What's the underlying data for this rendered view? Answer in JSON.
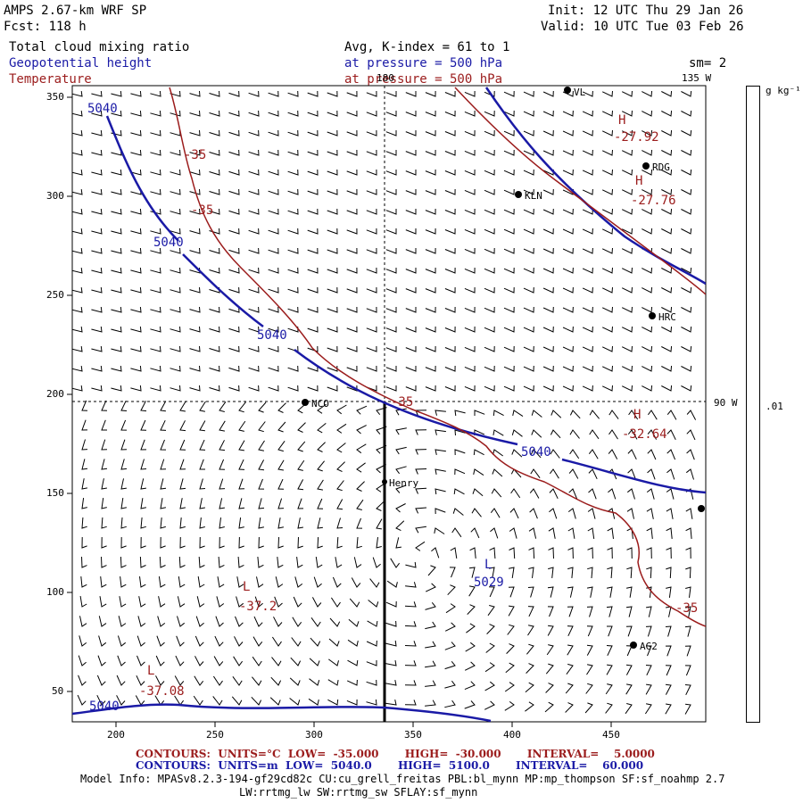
{
  "header": {
    "title": "AMPS 2.67-km WRF SP",
    "forecast": "Fcst: 118 h",
    "init": "Init: 12 UTC Thu 29 Jan 26",
    "valid": "Valid: 10 UTC Tue 03 Feb 26",
    "field1": "Total cloud mixing ratio",
    "field1_info": "Avg, K-index = 61 to 1",
    "field2": "Geopotential height",
    "field2_info": "at pressure = 500 hPa",
    "field3": "Temperature",
    "field3_info": "at pressure = 500 hPa",
    "smoothing": "sm= 2"
  },
  "map": {
    "lon_top": "180",
    "lon_top_right": "135 W",
    "lon_right": "90 W",
    "colorbar_unit": "g kg⁻¹",
    "colorbar_value": ".01",
    "x_ticks": [
      "200",
      "250",
      "300",
      "350",
      "400",
      "450"
    ],
    "y_ticks": [
      "350",
      "300",
      "250",
      "200",
      "150",
      "100",
      "50"
    ],
    "stations": [
      {
        "name": "RDG"
      },
      {
        "name": "KLN"
      },
      {
        "name": "HRC"
      },
      {
        "name": "NCO"
      },
      {
        "name": "Henry"
      },
      {
        "name": "AG2"
      },
      {
        "name": "VL"
      }
    ],
    "height_labels": [
      "5040",
      "5040",
      "5040",
      "5040",
      "5040",
      "5029"
    ],
    "temp_labels": [
      "-35",
      "-35",
      "-35",
      "-35",
      "-27.92",
      "-27.76",
      "-32.64",
      "-37.2",
      "-37.08"
    ],
    "hi_lo_marks": [
      "H",
      "H",
      "H",
      "L",
      "L",
      "L"
    ],
    "colors": {
      "height": "#1a1aa6",
      "temperature": "#9b1c1c",
      "axis": "#000000"
    }
  },
  "footer": {
    "temp_contours": "CONTOURS:  UNITS=°C  LOW=  -35.000       HIGH=  -30.000       INTERVAL=    5.0000",
    "height_contours": "CONTOURS:  UNITS=m  LOW=  5040.0       HIGH=  5100.0       INTERVAL=    60.000",
    "model_info": "Model Info: MPASv8.2.3-194-gf29cd82c CU:cu_grell_freitas PBL:bl_mynn MP:mp_thompson SF:sf_noahmp 2.7",
    "model_info2": "LW:rrtmg_lw SW:rrtmg_sw SFLAY:sf_mynn"
  }
}
